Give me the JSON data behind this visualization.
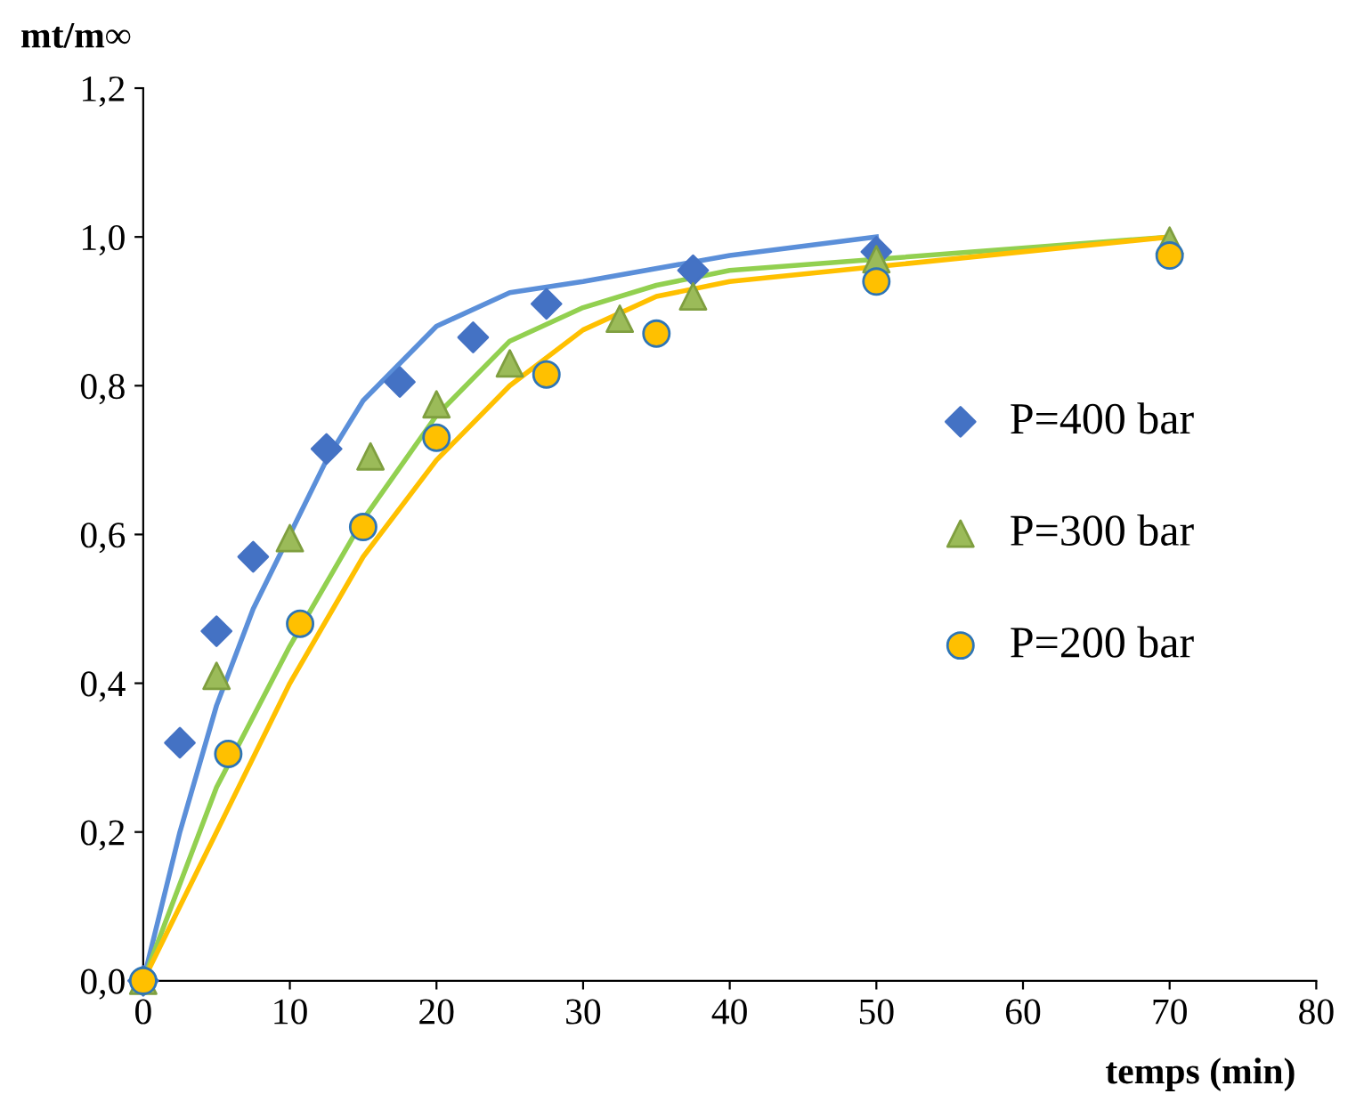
{
  "chart_data": {
    "type": "scatter",
    "ylabel": "mt/m∞",
    "xlabel": "temps (min)",
    "xlim": [
      0,
      80
    ],
    "xticks": [
      0,
      10,
      20,
      30,
      40,
      50,
      60,
      70,
      80
    ],
    "ylim": [
      0,
      1.2
    ],
    "yticks": [
      {
        "value": 0,
        "label": "0,0"
      },
      {
        "value": 0.2,
        "label": "0,2"
      },
      {
        "value": 0.4,
        "label": "0,4"
      },
      {
        "value": 0.6,
        "label": "0,6"
      },
      {
        "value": 0.8,
        "label": "0,8"
      },
      {
        "value": 1.0,
        "label": "1,0"
      },
      {
        "value": 1.2,
        "label": "1,2"
      }
    ],
    "grid": false,
    "legend": "right",
    "series": [
      {
        "type": "line",
        "color": "#5b8fd9",
        "marker": "none",
        "x": [
          0,
          2.5,
          5,
          7.5,
          10,
          12.5,
          15,
          20,
          25,
          30,
          40,
          50
        ],
        "values": [
          0,
          0.2,
          0.37,
          0.5,
          0.6,
          0.7,
          0.78,
          0.88,
          0.925,
          0.94,
          0.975,
          1.0
        ]
      },
      {
        "type": "line",
        "color": "#92d050",
        "marker": "none",
        "x": [
          0,
          5,
          10,
          15,
          20,
          25,
          30,
          35,
          40,
          50,
          70
        ],
        "values": [
          0,
          0.26,
          0.45,
          0.62,
          0.76,
          0.86,
          0.905,
          0.935,
          0.955,
          0.97,
          1.0
        ]
      },
      {
        "type": "line",
        "color": "#ffc000",
        "marker": "none",
        "x": [
          0,
          5,
          10,
          15,
          20,
          25,
          30,
          35,
          40,
          50,
          70
        ],
        "values": [
          0,
          0.2,
          0.4,
          0.57,
          0.7,
          0.8,
          0.875,
          0.92,
          0.94,
          0.96,
          1.0
        ]
      },
      {
        "name": "P=400 bar",
        "color": "#4472c4",
        "marker": "diamond",
        "x": [
          0,
          2.5,
          5,
          7.5,
          12.5,
          17.5,
          22.5,
          27.5,
          37.5,
          50
        ],
        "values": [
          0,
          0.32,
          0.47,
          0.57,
          0.715,
          0.805,
          0.865,
          0.91,
          0.955,
          0.98
        ]
      },
      {
        "name": "P=300 bar",
        "color": "#9bbb59",
        "marker": "triangle",
        "x": [
          0,
          5,
          10,
          15.5,
          20,
          25,
          32.5,
          37.5,
          50,
          70
        ],
        "values": [
          0,
          0.41,
          0.595,
          0.705,
          0.775,
          0.83,
          0.89,
          0.92,
          0.97,
          0.995
        ]
      },
      {
        "name": "P=200 bar",
        "color": "#ffc000",
        "marker": "circle",
        "x": [
          0,
          5.8,
          10.7,
          15,
          20,
          27.5,
          35,
          50,
          70
        ],
        "values": [
          0,
          0.305,
          0.48,
          0.61,
          0.73,
          0.815,
          0.87,
          0.94,
          0.975
        ]
      }
    ]
  }
}
